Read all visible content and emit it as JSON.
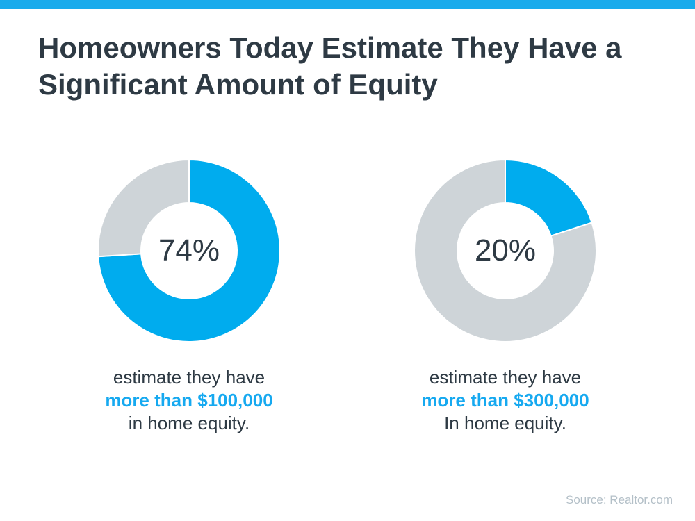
{
  "page": {
    "accent_color": "#19abec",
    "background_color": "#ffffff"
  },
  "header": {
    "title_line1": "Homeowners Today Estimate They Have a",
    "title_line2": "Significant Amount of Equity"
  },
  "chart_data": [
    {
      "type": "pie",
      "subtype": "donut",
      "segments": [
        "estimate they have more than $100,000 in home equity",
        "remainder"
      ],
      "values": [
        74,
        26
      ],
      "colors": [
        "#00acee",
        "#ced4d8"
      ],
      "center_label": "74%",
      "start_angle_deg": 0,
      "direction": "clockwise",
      "caption": {
        "line1": "estimate they have",
        "line2": "more than $100,000",
        "line3": "in home equity."
      }
    },
    {
      "type": "pie",
      "subtype": "donut",
      "segments": [
        "estimate they have more than $300,000 in home equity",
        "remainder"
      ],
      "values": [
        20,
        80
      ],
      "colors": [
        "#00acee",
        "#ced4d8"
      ],
      "center_label": "20%",
      "start_angle_deg": 0,
      "direction": "clockwise",
      "caption": {
        "line1": "estimate they have",
        "line2": "more than $300,000",
        "line3": "In home equity."
      }
    }
  ],
  "footer": {
    "source_label": "Source: Realtor.com"
  }
}
